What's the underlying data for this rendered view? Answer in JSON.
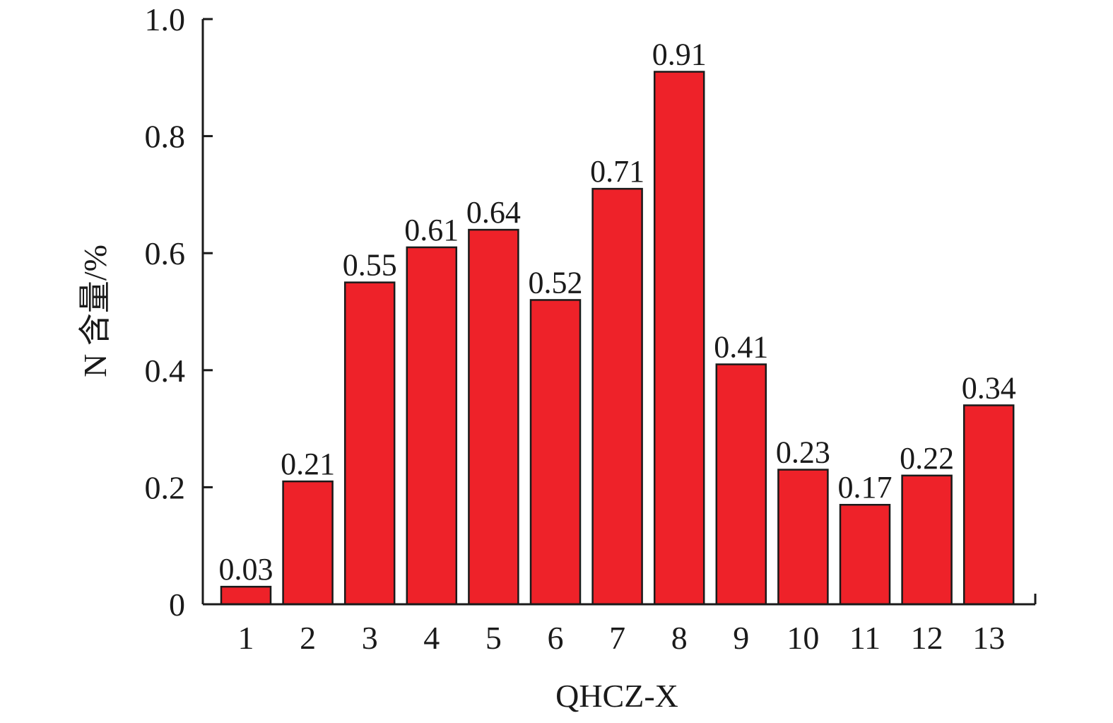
{
  "chart_data": {
    "type": "bar",
    "categories": [
      "1",
      "2",
      "3",
      "4",
      "5",
      "6",
      "7",
      "8",
      "9",
      "10",
      "11",
      "12",
      "13"
    ],
    "values": [
      0.03,
      0.21,
      0.55,
      0.61,
      0.64,
      0.52,
      0.71,
      0.91,
      0.41,
      0.23,
      0.17,
      0.22,
      0.34
    ],
    "data_labels": [
      "0.03",
      "0.21",
      "0.55",
      "0.61",
      "0.64",
      "0.52",
      "0.71",
      "0.91",
      "0.41",
      "0.23",
      "0.17",
      "0.22",
      "0.34"
    ],
    "xlabel": "QHCZ-X",
    "ylabel": "N 含量/%",
    "ylim": [
      0,
      1.0
    ],
    "y_ticks": [
      0,
      0.2,
      0.4,
      0.6,
      0.8,
      1.0
    ],
    "y_tick_labels": [
      "0",
      "0.2",
      "0.4",
      "0.6",
      "0.8",
      "1.0"
    ],
    "grid": false,
    "legend": "none",
    "bar_color": "#ee2229",
    "bar_edge_color": "#1a1a1a"
  }
}
